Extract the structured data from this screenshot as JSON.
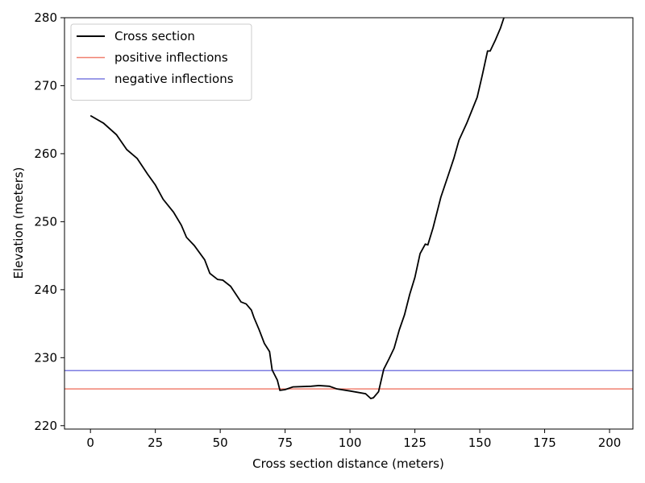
{
  "chart_data": {
    "type": "line",
    "x_label": "Cross section distance (meters)",
    "y_label": "Elevation (meters)",
    "x": [
      0,
      5,
      10,
      14,
      18,
      22,
      25,
      28,
      32,
      35,
      37,
      40,
      44,
      46,
      49,
      51,
      54,
      58,
      60,
      62,
      63,
      65,
      67,
      69,
      70,
      72,
      73,
      75,
      78,
      85,
      88,
      92,
      95,
      100,
      106,
      108,
      109,
      111,
      113,
      115,
      117,
      119,
      121,
      123,
      125,
      127,
      129,
      130,
      132,
      135,
      138,
      140,
      142,
      145,
      147,
      149,
      151,
      153,
      154,
      156,
      158,
      160
    ],
    "series": [
      {
        "name": "Cross section",
        "color": "#000000",
        "values": [
          265.6,
          264.5,
          262.8,
          260.6,
          259.3,
          257.0,
          255.4,
          253.3,
          251.4,
          249.5,
          247.7,
          246.5,
          244.4,
          242.4,
          241.5,
          241.4,
          240.5,
          238.2,
          237.9,
          237.0,
          235.9,
          234.1,
          232.1,
          230.9,
          228.2,
          226.7,
          225.2,
          225.3,
          225.7,
          225.8,
          225.9,
          225.8,
          225.4,
          225.1,
          224.7,
          224.0,
          224.1,
          225.0,
          228.3,
          229.8,
          231.4,
          234.1,
          236.3,
          239.3,
          241.8,
          245.3,
          246.7,
          246.6,
          249.1,
          253.6,
          257.0,
          259.3,
          262.0,
          264.5,
          266.4,
          268.3,
          271.6,
          275.1,
          275.1,
          276.7,
          278.5,
          280.8
        ]
      }
    ],
    "hlines": [
      {
        "name": "positive inflections",
        "color": "#f08070",
        "value": 225.4
      },
      {
        "name": "negative inflections",
        "color": "#7a7ae0",
        "value": 228.1
      }
    ],
    "xlim": [
      -10,
      209
    ],
    "ylim": [
      219.5,
      280
    ],
    "xticks": [
      0,
      25,
      50,
      75,
      100,
      125,
      150,
      175,
      200
    ],
    "yticks": [
      220,
      230,
      240,
      250,
      260,
      270,
      280
    ],
    "legend": "upper-left"
  }
}
